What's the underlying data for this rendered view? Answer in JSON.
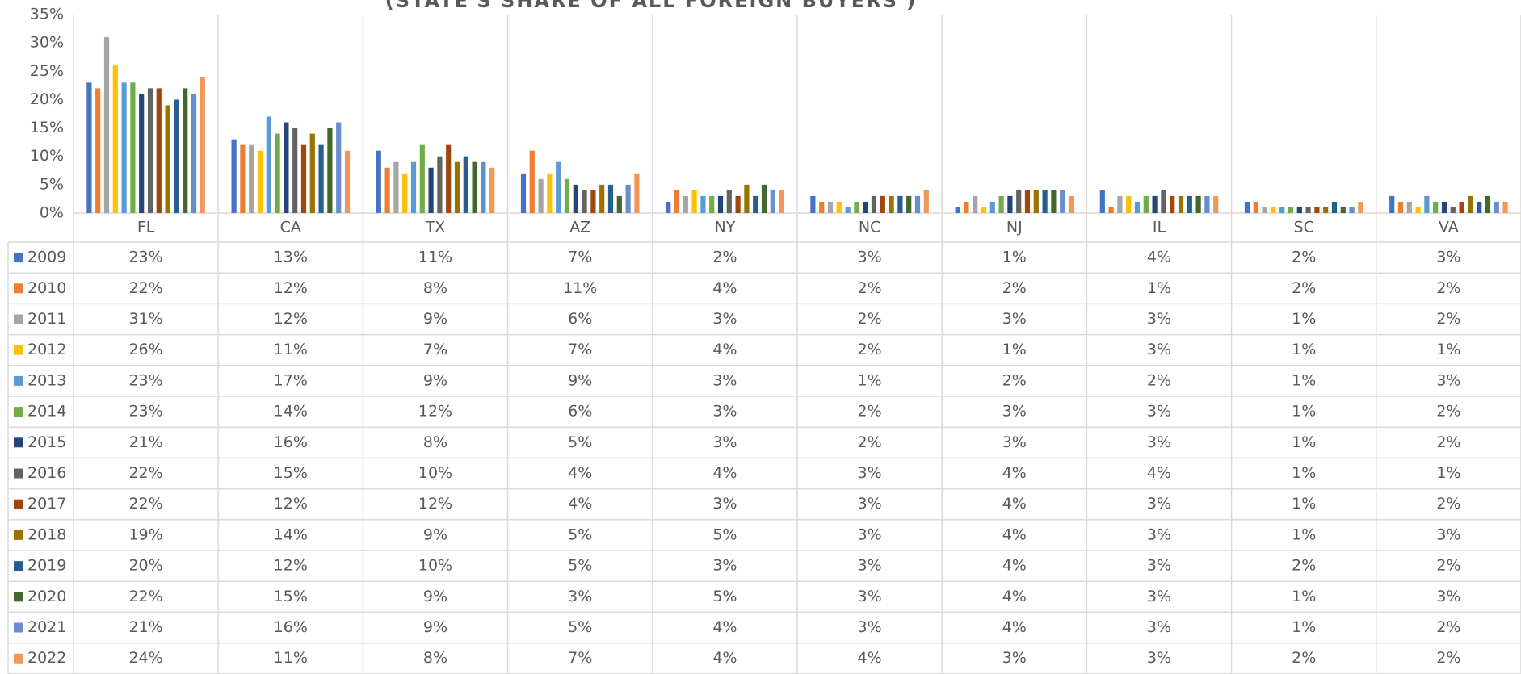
{
  "chart_data": {
    "type": "bar",
    "title": "(STATE'S SHARE OF ALL FOREIGN BUYERS )",
    "categories": [
      "FL",
      "CA",
      "TX",
      "AZ",
      "NY",
      "NC",
      "NJ",
      "IL",
      "SC",
      "VA"
    ],
    "ylim": [
      0,
      35
    ],
    "yticks": [
      {
        "value": 0,
        "label": "0%"
      },
      {
        "value": 5,
        "label": "5%"
      },
      {
        "value": 10,
        "label": "10%"
      },
      {
        "value": 15,
        "label": "15%"
      },
      {
        "value": 20,
        "label": "20%"
      },
      {
        "value": 25,
        "label": "25%"
      },
      {
        "value": 30,
        "label": "30%"
      },
      {
        "value": 35,
        "label": "35%"
      }
    ],
    "series": [
      {
        "name": "2009",
        "color": "#4472c4",
        "values": [
          23,
          13,
          11,
          7,
          2,
          3,
          1,
          4,
          2,
          3
        ],
        "value_labels": [
          "23%",
          "13%",
          "11%",
          "7%",
          "2%",
          "3%",
          "1%",
          "4%",
          "2%",
          "3%"
        ]
      },
      {
        "name": "2010",
        "color": "#ed7d31",
        "values": [
          22,
          12,
          8,
          11,
          4,
          2,
          2,
          1,
          2,
          2
        ],
        "value_labels": [
          "22%",
          "12%",
          "8%",
          "11%",
          "4%",
          "2%",
          "2%",
          "1%",
          "2%",
          "2%"
        ]
      },
      {
        "name": "2011",
        "color": "#a5a5a5",
        "values": [
          31,
          12,
          9,
          6,
          3,
          2,
          3,
          3,
          1,
          2
        ],
        "value_labels": [
          "31%",
          "12%",
          "9%",
          "6%",
          "3%",
          "2%",
          "3%",
          "3%",
          "1%",
          "2%"
        ]
      },
      {
        "name": "2012",
        "color": "#ffc000",
        "values": [
          26,
          11,
          7,
          7,
          4,
          2,
          1,
          3,
          1,
          1
        ],
        "value_labels": [
          "26%",
          "11%",
          "7%",
          "7%",
          "4%",
          "2%",
          "1%",
          "3%",
          "1%",
          "1%"
        ]
      },
      {
        "name": "2013",
        "color": "#5b9bd5",
        "values": [
          23,
          17,
          9,
          9,
          3,
          1,
          2,
          2,
          1,
          3
        ],
        "value_labels": [
          "23%",
          "17%",
          "9%",
          "9%",
          "3%",
          "1%",
          "2%",
          "2%",
          "1%",
          "3%"
        ]
      },
      {
        "name": "2014",
        "color": "#70ad47",
        "values": [
          23,
          14,
          12,
          6,
          3,
          2,
          3,
          3,
          1,
          2
        ],
        "value_labels": [
          "23%",
          "14%",
          "12%",
          "6%",
          "3%",
          "2%",
          "3%",
          "3%",
          "1%",
          "2%"
        ]
      },
      {
        "name": "2015",
        "color": "#264478",
        "values": [
          21,
          16,
          8,
          5,
          3,
          2,
          3,
          3,
          1,
          2
        ],
        "value_labels": [
          "21%",
          "16%",
          "8%",
          "5%",
          "3%",
          "2%",
          "3%",
          "3%",
          "1%",
          "2%"
        ]
      },
      {
        "name": "2016",
        "color": "#636363",
        "values": [
          22,
          15,
          10,
          4,
          4,
          3,
          4,
          4,
          1,
          1
        ],
        "value_labels": [
          "22%",
          "15%",
          "10%",
          "4%",
          "4%",
          "3%",
          "4%",
          "4%",
          "1%",
          "1%"
        ]
      },
      {
        "name": "2017",
        "color": "#9e480e",
        "values": [
          22,
          12,
          12,
          4,
          3,
          3,
          4,
          3,
          1,
          2
        ],
        "value_labels": [
          "22%",
          "12%",
          "12%",
          "4%",
          "3%",
          "3%",
          "4%",
          "3%",
          "1%",
          "2%"
        ]
      },
      {
        "name": "2018",
        "color": "#997300",
        "values": [
          19,
          14,
          9,
          5,
          5,
          3,
          4,
          3,
          1,
          3
        ],
        "value_labels": [
          "19%",
          "14%",
          "9%",
          "5%",
          "5%",
          "3%",
          "4%",
          "3%",
          "1%",
          "3%"
        ]
      },
      {
        "name": "2019",
        "color": "#255e91",
        "values": [
          20,
          12,
          10,
          5,
          3,
          3,
          4,
          3,
          2,
          2
        ],
        "value_labels": [
          "20%",
          "12%",
          "10%",
          "5%",
          "3%",
          "3%",
          "4%",
          "3%",
          "2%",
          "2%"
        ]
      },
      {
        "name": "2020",
        "color": "#43682b",
        "values": [
          22,
          15,
          9,
          3,
          5,
          3,
          4,
          3,
          1,
          3
        ],
        "value_labels": [
          "22%",
          "15%",
          "9%",
          "3%",
          "5%",
          "3%",
          "4%",
          "3%",
          "1%",
          "3%"
        ]
      },
      {
        "name": "2021",
        "color": "#698ed0",
        "values": [
          21,
          16,
          9,
          5,
          4,
          3,
          4,
          3,
          1,
          2
        ],
        "value_labels": [
          "21%",
          "16%",
          "9%",
          "5%",
          "4%",
          "3%",
          "4%",
          "3%",
          "1%",
          "2%"
        ]
      },
      {
        "name": "2022",
        "color": "#f1975a",
        "values": [
          24,
          11,
          8,
          7,
          4,
          4,
          3,
          3,
          2,
          2
        ],
        "value_labels": [
          "24%",
          "11%",
          "8%",
          "7%",
          "4%",
          "4%",
          "3%",
          "3%",
          "2%",
          "2%"
        ]
      }
    ]
  }
}
